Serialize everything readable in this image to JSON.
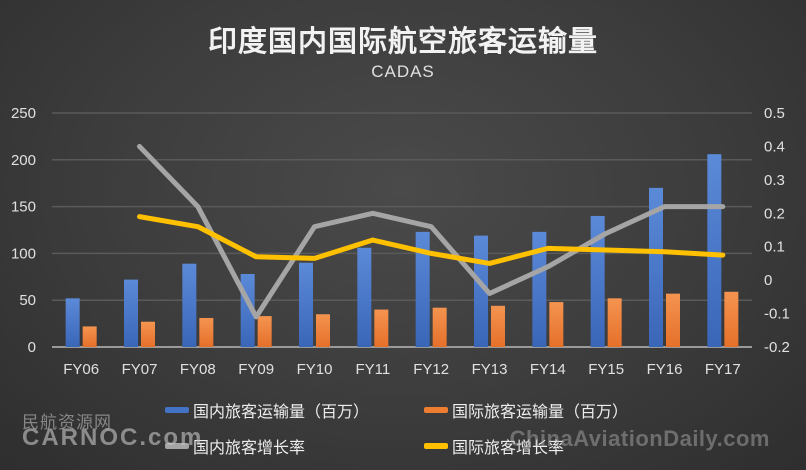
{
  "header": {
    "title": "印度国内国际航空旅客运输量",
    "subtitle": "CADAS"
  },
  "watermarks": {
    "left_cn": "民航资源网",
    "left_en": "CARNOC.com",
    "right_en": "ChinaAviationDaily.com"
  },
  "colors": {
    "background": "#3c3c3c",
    "domestic_bar": "#4472c4",
    "international_bar": "#ed7d31",
    "domestic_growth": "#a5a5a5",
    "international_growth": "#ffc000",
    "gridline": "#5a5a5a",
    "axis_text": "#e0e0e0"
  },
  "legend": [
    {
      "label": "国内旅客运输量（百万）",
      "type": "bar",
      "color": "#4472c4"
    },
    {
      "label": "国际旅客运输量（百万）",
      "type": "bar",
      "color": "#ed7d31"
    },
    {
      "label": "国内旅客增长率",
      "type": "line",
      "color": "#a5a5a5"
    },
    {
      "label": "国际旅客增长率",
      "type": "line",
      "color": "#ffc000"
    }
  ],
  "chart_data": {
    "type": "bar",
    "title": "印度国内国际航空旅客运输量",
    "subtitle": "CADAS",
    "xlabel": "",
    "ylabel": "",
    "categories": [
      "FY06",
      "FY07",
      "FY08",
      "FY09",
      "FY10",
      "FY11",
      "FY12",
      "FY13",
      "FY14",
      "FY15",
      "FY16",
      "FY17"
    ],
    "ylim": [
      0,
      250
    ],
    "yticks": [
      0,
      50,
      100,
      150,
      200,
      250
    ],
    "y2lim": [
      -0.2,
      0.5
    ],
    "y2ticks": [
      -0.2,
      -0.1,
      0,
      0.1,
      0.2,
      0.3,
      0.4,
      0.5
    ],
    "grid": true,
    "legend_position": "bottom",
    "series": [
      {
        "name": "国内旅客运输量（百万）",
        "type": "bar",
        "axis": "left",
        "values": [
          52,
          72,
          89,
          78,
          90,
          106,
          123,
          119,
          123,
          140,
          170,
          206
        ]
      },
      {
        "name": "国际旅客运输量（百万）",
        "type": "bar",
        "axis": "left",
        "values": [
          22,
          27,
          31,
          33,
          35,
          40,
          42,
          44,
          48,
          52,
          57,
          59
        ]
      },
      {
        "name": "国内旅客增长率",
        "type": "line",
        "axis": "right",
        "values": [
          null,
          0.4,
          0.22,
          -0.11,
          0.16,
          0.2,
          0.16,
          -0.04,
          0.04,
          0.14,
          0.22,
          0.22
        ]
      },
      {
        "name": "国际旅客增长率",
        "type": "line",
        "axis": "right",
        "values": [
          null,
          0.19,
          0.16,
          0.07,
          0.065,
          0.12,
          0.08,
          0.05,
          0.095,
          0.09,
          0.085,
          0.075
        ]
      }
    ]
  }
}
